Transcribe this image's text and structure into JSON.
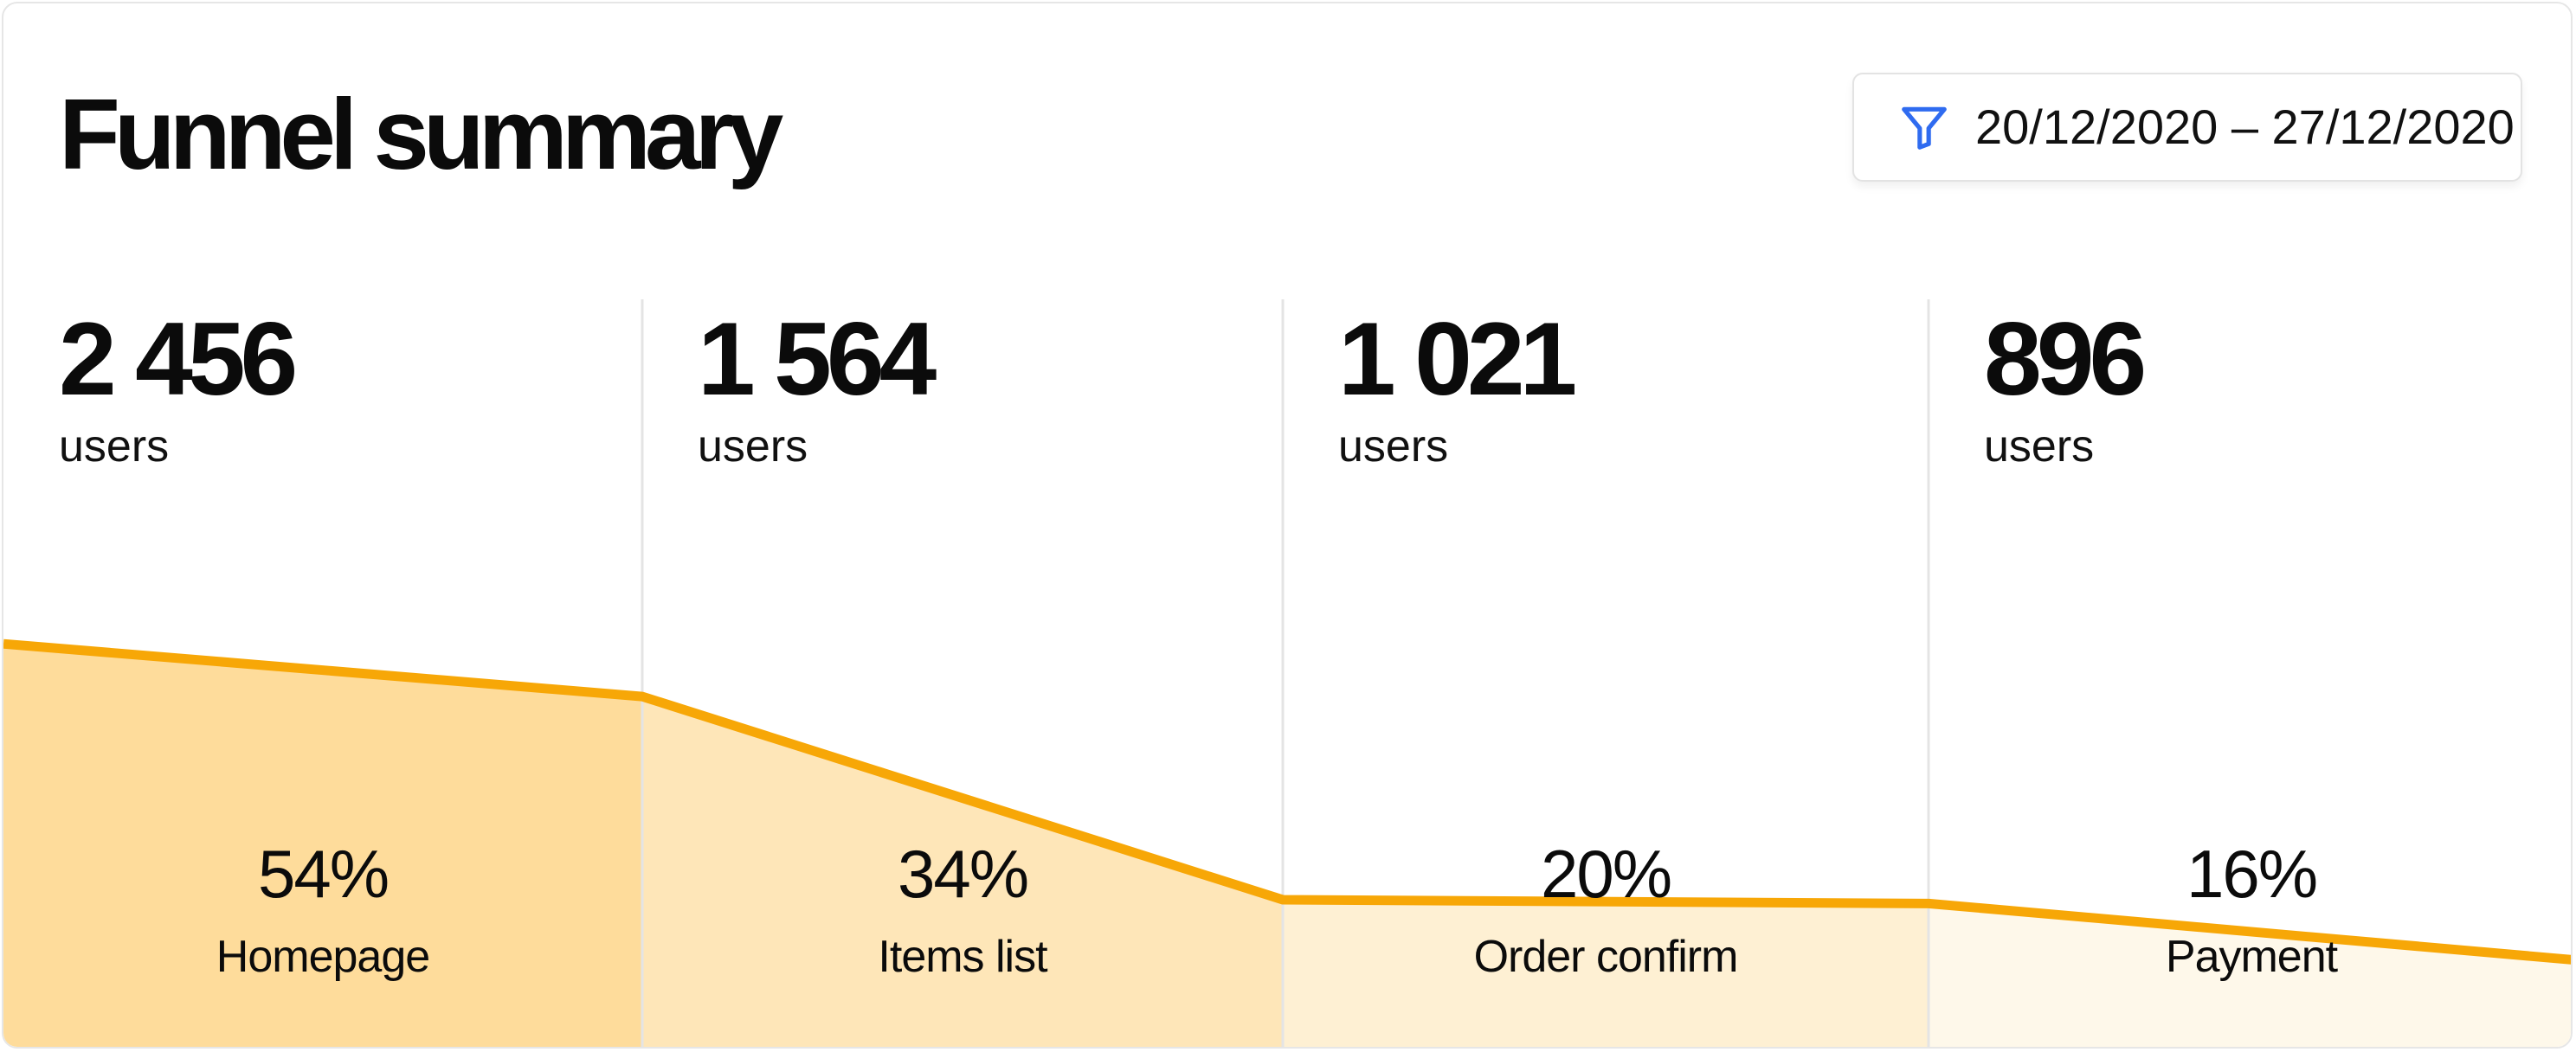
{
  "header": {
    "title": "Funnel summary",
    "date_range": "20/12/2020 – 27/12/2020",
    "filter_icon": "funnel-icon"
  },
  "colors": {
    "accent_line": "#f7a707",
    "filter_icon": "#2f6bf0",
    "divider": "#e4e4e4",
    "fills": [
      "#fedc9b",
      "#fee6b8",
      "#fef0d3",
      "#fef8ea"
    ]
  },
  "chart_data": {
    "type": "area",
    "categories": [
      "Homepage",
      "Items list",
      "Order confirm",
      "Payment"
    ],
    "values": [
      2456,
      1564,
      1021,
      896
    ],
    "unit": "users",
    "percents": [
      "54%",
      "34%",
      "20%",
      "16%"
    ],
    "line_levels": [
      54,
      47,
      20,
      19.5,
      12
    ],
    "ylim": [
      0,
      100
    ],
    "legend": "none",
    "grid": false
  },
  "stages": [
    {
      "count": "2 456",
      "unit": "users",
      "percent": "54%",
      "name": "Homepage"
    },
    {
      "count": "1 564",
      "unit": "users",
      "percent": "34%",
      "name": "Items list"
    },
    {
      "count": "1 021",
      "unit": "users",
      "percent": "20%",
      "name": "Order confirm"
    },
    {
      "count": "896",
      "unit": "users",
      "percent": "16%",
      "name": "Payment"
    }
  ]
}
